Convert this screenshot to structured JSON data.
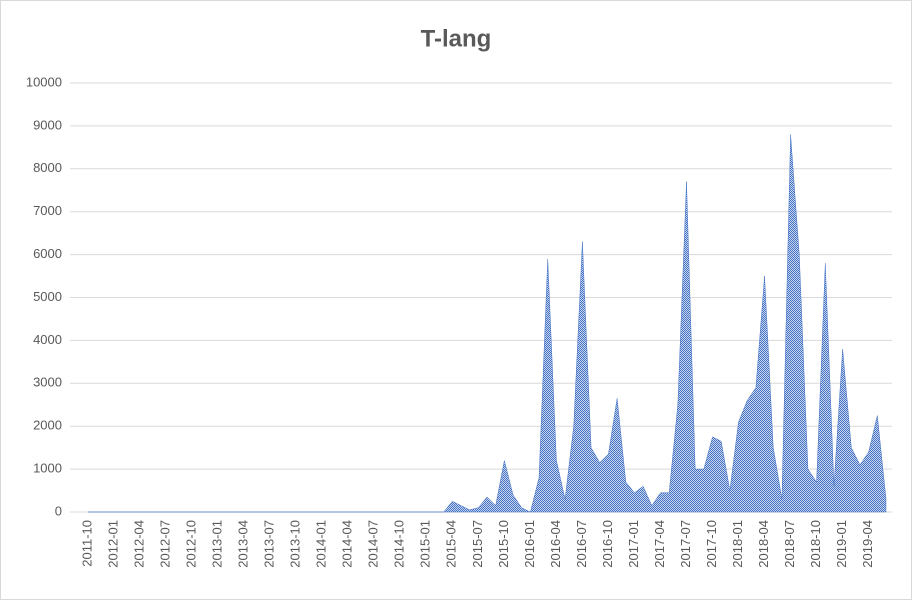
{
  "chart_data": {
    "type": "area",
    "title": "T-lang",
    "categories": [
      "2011-10",
      null,
      null,
      "2012-01",
      null,
      null,
      "2012-04",
      null,
      null,
      "2012-07",
      null,
      null,
      "2012-10",
      null,
      null,
      "2013-01",
      null,
      null,
      "2013-04",
      null,
      null,
      "2013-07",
      null,
      null,
      "2013-10",
      null,
      null,
      "2014-01",
      null,
      null,
      "2014-04",
      null,
      null,
      "2014-07",
      null,
      null,
      "2014-10",
      null,
      null,
      "2015-01",
      null,
      null,
      "2015-04",
      null,
      null,
      "2015-07",
      null,
      null,
      "2015-10",
      null,
      null,
      "2016-01",
      null,
      null,
      "2016-04",
      null,
      null,
      "2016-07",
      null,
      null,
      "2016-10",
      null,
      null,
      "2017-01",
      null,
      null,
      "2017-04",
      null,
      null,
      "2017-07",
      null,
      null,
      "2017-10",
      null,
      null,
      "2018-01",
      null,
      null,
      "2018-04",
      null,
      null,
      "2018-07",
      null,
      null,
      "2018-10",
      null,
      null,
      "2019-01",
      null,
      null,
      "2019-04",
      null,
      null
    ],
    "values": [
      0,
      0,
      0,
      0,
      0,
      0,
      0,
      0,
      0,
      0,
      0,
      0,
      0,
      0,
      0,
      0,
      0,
      0,
      0,
      0,
      0,
      0,
      0,
      0,
      0,
      0,
      0,
      0,
      0,
      0,
      0,
      0,
      0,
      0,
      0,
      0,
      0,
      0,
      0,
      0,
      0,
      0,
      250,
      150,
      50,
      100,
      350,
      150,
      1200,
      400,
      100,
      0,
      800,
      5900,
      1200,
      300,
      2000,
      6300,
      1500,
      1150,
      1350,
      2650,
      700,
      450,
      600,
      150,
      450,
      450,
      2500,
      7700,
      1000,
      1000,
      1750,
      1650,
      500,
      2100,
      2600,
      2900,
      5500,
      1500,
      300,
      8800,
      6000,
      1000,
      700,
      5800,
      600,
      3800,
      1500,
      1100,
      1400,
      2250,
      300
    ],
    "color": "#4472c4",
    "ylim": [
      0,
      10000
    ],
    "yticks": [
      0,
      1000,
      2000,
      3000,
      4000,
      5000,
      6000,
      7000,
      8000,
      9000,
      10000
    ],
    "grid": true
  }
}
